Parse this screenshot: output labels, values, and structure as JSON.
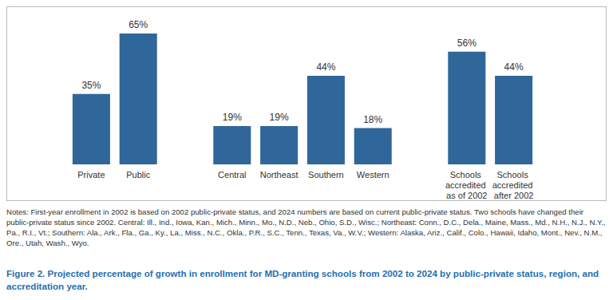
{
  "chart_data": {
    "type": "bar",
    "categories": [
      "Private",
      "Public",
      null,
      "Central",
      "Northeast",
      "Southern",
      "Western",
      null,
      "Schools accredited as of 2002",
      "Schools accredited after 2002"
    ],
    "values": [
      35,
      65,
      null,
      19,
      19,
      44,
      18,
      null,
      56,
      44
    ],
    "value_labels": [
      "35%",
      "65%",
      null,
      "19%",
      "19%",
      "44%",
      "18%",
      null,
      "56%",
      "44%"
    ],
    "color": "#30679a",
    "ylim": [
      0,
      65
    ],
    "grid": false,
    "data_labels": true,
    "tick_labels": "x",
    "notes": "Notes: First-year enrollment in 2002 is based on 2002 public-private status, and 2024 numbers are based on current public-private status. Two schools have changed their public-private status since 2002. Central: Ill., Ind., Iowa, Kan., Mich., Minn., Mo., N.D., Neb., Ohio, S.D., Wisc.; Northeast: Conn., D.C., Dela., Maine, Mass., Md., N.H., N.J., N.Y., Pa., R.I., Vt.; Southern: Ala., Ark., Fla., Ga., Ky., La., Miss., N.C., Okla., P.R., S.C., Tenn., Texas, Va., W.V.; Western: Alaska, Ariz., Calif., Colo., Hawaii, Idaho, Mont., Nev., N.M., Ore., Utah, Wash., Wyo.",
    "caption": "Figure 2. Projected percentage of growth in enrollment for MD-granting schools from 2002 to 2024 by public-private status, region, and accreditation year."
  }
}
